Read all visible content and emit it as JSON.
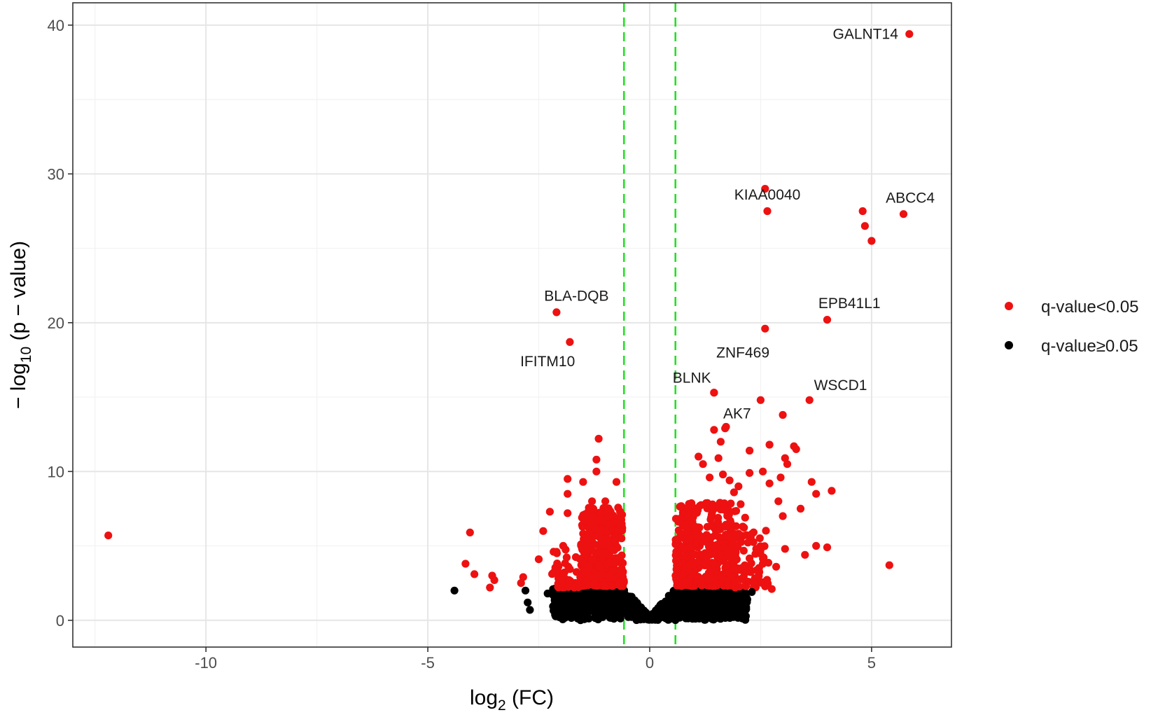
{
  "chart_data": {
    "type": "scatter",
    "xlabel": "log2 (FC)",
    "xlabel_main": "log",
    "xlabel_sub": "2",
    "xlabel_tail": " (FC)",
    "ylabel": "− log10 (p − value)",
    "ylabel_main": "− log",
    "ylabel_sub": "10",
    "ylabel_tail": " (p − value)",
    "xlim": [
      -13.0,
      6.8
    ],
    "ylim": [
      -1.8,
      41.5
    ],
    "x_ticks": [
      -10,
      -5,
      0,
      5
    ],
    "x_tick_labels": [
      "-10",
      "-5",
      "0",
      "5"
    ],
    "y_ticks": [
      0,
      10,
      20,
      30,
      40
    ],
    "y_tick_labels": [
      "0",
      "10",
      "20",
      "30",
      "40"
    ],
    "grid": true,
    "threshold_lines_x": [
      -0.58,
      0.58
    ],
    "threshold_color": "#22e022",
    "legend_position": "right",
    "series": [
      {
        "name": "q-value<0.05",
        "color": "#ee1111",
        "points": [
          [
            -12.2,
            5.7
          ],
          [
            -4.05,
            5.9
          ],
          [
            -4.15,
            3.8
          ],
          [
            -3.95,
            3.1
          ],
          [
            -3.55,
            3.0
          ],
          [
            -3.5,
            2.7
          ],
          [
            -3.6,
            2.2
          ],
          [
            -2.85,
            2.9
          ],
          [
            -2.9,
            2.5
          ],
          [
            -2.25,
            7.3
          ],
          [
            -2.4,
            6.0
          ],
          [
            -2.5,
            4.1
          ],
          [
            -2.1,
            4.6
          ],
          [
            -1.85,
            9.5
          ],
          [
            -1.85,
            8.5
          ],
          [
            -1.85,
            7.2
          ],
          [
            -1.95,
            5.0
          ],
          [
            -1.5,
            9.3
          ],
          [
            -1.3,
            8.0
          ],
          [
            -1.2,
            10.0
          ],
          [
            -1.15,
            12.2
          ],
          [
            -1.2,
            10.8
          ],
          [
            -1.0,
            8.0
          ],
          [
            -0.95,
            7.3
          ],
          [
            -0.8,
            6.6
          ],
          [
            -0.75,
            9.3
          ],
          [
            2.6,
            29.0
          ],
          [
            4.8,
            27.5
          ],
          [
            4.85,
            26.5
          ],
          [
            5.0,
            25.5
          ],
          [
            1.45,
            15.3
          ],
          [
            1.7,
            12.9
          ],
          [
            1.45,
            12.8
          ],
          [
            1.6,
            12.0
          ],
          [
            2.5,
            14.8
          ],
          [
            2.7,
            11.8
          ],
          [
            2.25,
            11.4
          ],
          [
            3.0,
            13.8
          ],
          [
            3.25,
            11.7
          ],
          [
            3.3,
            11.5
          ],
          [
            3.05,
            10.9
          ],
          [
            3.1,
            10.5
          ],
          [
            3.65,
            9.3
          ],
          [
            3.75,
            8.5
          ],
          [
            4.1,
            8.7
          ],
          [
            2.9,
            8.0
          ],
          [
            3.0,
            7.0
          ],
          [
            3.4,
            7.5
          ],
          [
            3.75,
            5.0
          ],
          [
            4.0,
            4.9
          ],
          [
            5.4,
            3.7
          ],
          [
            2.85,
            3.6
          ],
          [
            2.75,
            2.1
          ],
          [
            2.55,
            3.8
          ],
          [
            2.35,
            2.5
          ],
          [
            3.5,
            4.4
          ],
          [
            3.05,
            4.8
          ],
          [
            2.0,
            9.0
          ],
          [
            2.05,
            7.8
          ],
          [
            2.15,
            6.9
          ],
          [
            2.3,
            5.8
          ],
          [
            2.4,
            4.8
          ],
          [
            1.1,
            11.0
          ],
          [
            1.2,
            10.5
          ],
          [
            1.35,
            9.6
          ],
          [
            1.55,
            10.9
          ],
          [
            1.65,
            9.8
          ],
          [
            1.8,
            9.4
          ],
          [
            2.25,
            9.9
          ],
          [
            2.55,
            10.0
          ],
          [
            1.9,
            8.6
          ],
          [
            2.7,
            9.2
          ],
          [
            2.95,
            9.6
          ]
        ]
      },
      {
        "name": "q-value≥0.05",
        "color": "#000000",
        "points": [
          [
            -4.4,
            2.0
          ],
          [
            -2.8,
            2.0
          ],
          [
            -2.75,
            1.2
          ],
          [
            -2.7,
            0.7
          ],
          [
            -2.3,
            1.8
          ],
          [
            2.15,
            0.8
          ],
          [
            2.3,
            1.9
          ],
          [
            2.2,
            1.4
          ]
        ]
      }
    ],
    "clusters": [
      {
        "series": 0,
        "x_range": [
          -1.55,
          -0.58
        ],
        "y_range": [
          2.3,
          7.6
        ],
        "count": 340
      },
      {
        "series": 0,
        "x_range": [
          0.58,
          1.95
        ],
        "y_range": [
          2.3,
          7.9
        ],
        "count": 430
      },
      {
        "series": 0,
        "x_range": [
          -2.2,
          -1.45
        ],
        "y_range": [
          2.2,
          5.0
        ],
        "count": 45
      },
      {
        "series": 0,
        "x_range": [
          1.9,
          2.7
        ],
        "y_range": [
          2.2,
          6.4
        ],
        "count": 60
      }
    ],
    "labeled_genes": [
      {
        "label": "GALNT14",
        "x": 5.85,
        "y": 39.4,
        "anchor": "end",
        "dx": -0.25,
        "dy": 0
      },
      {
        "label": "KIAA0040",
        "x": 2.65,
        "y": 27.5,
        "anchor": "middle",
        "dx": 0,
        "dy": 1.1
      },
      {
        "label": "ABCC4",
        "x": 5.72,
        "y": 27.3,
        "anchor": "middle",
        "dx": 0.15,
        "dy": 1.1
      },
      {
        "label": "BLA-DQB",
        "x": -2.1,
        "y": 20.7,
        "anchor": "middle",
        "dx": 0.45,
        "dy": 1.1
      },
      {
        "label": "IFITM10",
        "x": -1.8,
        "y": 18.7,
        "anchor": "middle",
        "dx": -0.5,
        "dy": -1.3
      },
      {
        "label": "EPB41L1",
        "x": 4.0,
        "y": 20.2,
        "anchor": "middle",
        "dx": 0.5,
        "dy": 1.1
      },
      {
        "label": "ZNF469",
        "x": 2.6,
        "y": 19.6,
        "anchor": "middle",
        "dx": -0.5,
        "dy": -1.6
      },
      {
        "label": "BLNK",
        "x": 1.45,
        "y": 15.3,
        "anchor": "middle",
        "dx": -0.5,
        "dy": 1.0
      },
      {
        "label": "WSCD1",
        "x": 3.6,
        "y": 14.8,
        "anchor": "middle",
        "dx": 0.7,
        "dy": 1.0
      },
      {
        "label": "AK7",
        "x": 1.72,
        "y": 13.0,
        "anchor": "middle",
        "dx": 0.25,
        "dy": 0.9
      }
    ]
  }
}
